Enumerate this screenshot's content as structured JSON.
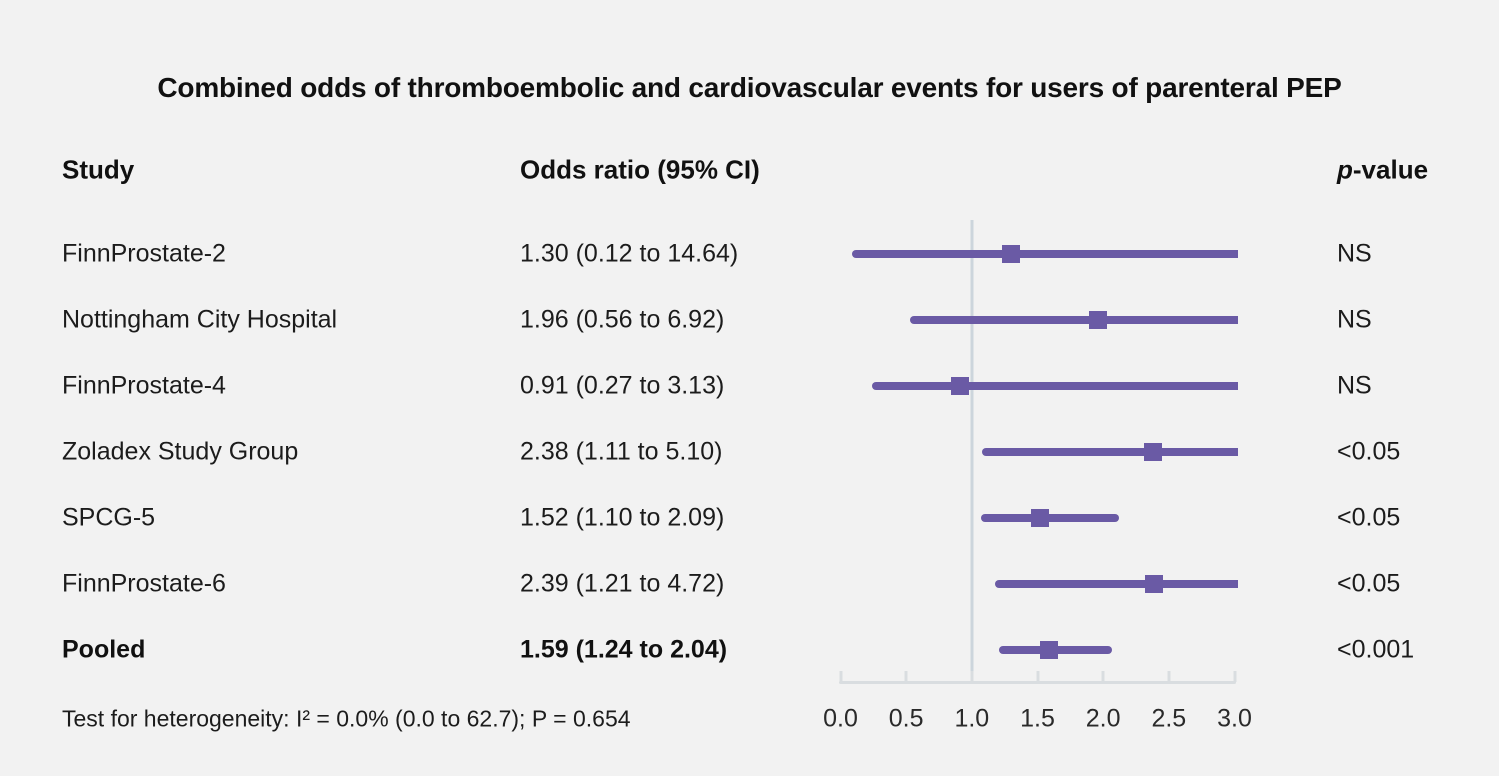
{
  "title": "Combined odds of thromboembolic and cardiovascular events for users of parenteral PEP",
  "columns": {
    "study": "Study",
    "odds_ratio": "Odds ratio (95% CI)",
    "p_italic": "p",
    "p_rest": "-value"
  },
  "footnote": "Test for heterogeneity: I² = 0.0% (0.0 to 62.7); P = 0.654",
  "colors": {
    "marker_purple": "#6a5aa5",
    "reference_line": "#ccd5dc",
    "axis_line": "#d9dde0",
    "background": "#f2f2f2",
    "text": "#1c1c1c"
  },
  "chart_data": {
    "type": "forest",
    "xlim": [
      0.0,
      3.0
    ],
    "reference_value": 1.0,
    "xticks": [
      0.0,
      0.5,
      1.0,
      1.5,
      2.0,
      2.5,
      3.0
    ],
    "xtick_labels": [
      "0.0",
      "0.5",
      "1.0",
      "1.5",
      "2.0",
      "2.5",
      "3.0"
    ],
    "grid": false,
    "rows": [
      {
        "study": "FinnProstate-2",
        "or": 1.3,
        "ci_low": 0.12,
        "ci_high": 14.64,
        "or_label": "1.30 (0.12 to 14.64)",
        "p": "NS",
        "bold": false
      },
      {
        "study": "Nottingham City Hospital",
        "or": 1.96,
        "ci_low": 0.56,
        "ci_high": 6.92,
        "or_label": "1.96 (0.56 to 6.92)",
        "p": "NS",
        "bold": false
      },
      {
        "study": "FinnProstate-4",
        "or": 0.91,
        "ci_low": 0.27,
        "ci_high": 3.13,
        "or_label": "0.91 (0.27 to 3.13)",
        "p": "NS",
        "bold": false
      },
      {
        "study": "Zoladex Study Group",
        "or": 2.38,
        "ci_low": 1.11,
        "ci_high": 5.1,
        "or_label": "2.38 (1.11 to 5.10)",
        "p": "<0.05",
        "bold": false
      },
      {
        "study": "SPCG-5",
        "or": 1.52,
        "ci_low": 1.1,
        "ci_high": 2.09,
        "or_label": "1.52 (1.10 to 2.09)",
        "p": "<0.05",
        "bold": false
      },
      {
        "study": "FinnProstate-6",
        "or": 2.39,
        "ci_low": 1.21,
        "ci_high": 4.72,
        "or_label": "2.39 (1.21 to 4.72)",
        "p": "<0.05",
        "bold": false
      },
      {
        "study": "Pooled",
        "or": 1.59,
        "ci_low": 1.24,
        "ci_high": 2.04,
        "or_label": "1.59 (1.24 to 2.04)",
        "p": "<0.001",
        "bold": true
      }
    ]
  }
}
